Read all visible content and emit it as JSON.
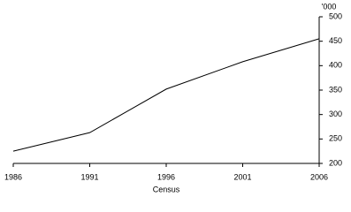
{
  "chart_data": {
    "type": "line",
    "x": [
      1986,
      1991,
      1996,
      2001,
      2006
    ],
    "series": [
      {
        "values": [
          225,
          263,
          352,
          408,
          455
        ],
        "color": "#000000"
      }
    ],
    "xlim": [
      1986,
      2006
    ],
    "xticks": [
      1986,
      1991,
      1996,
      2001,
      2006
    ],
    "ylim": [
      200,
      500
    ],
    "yticks": [
      200,
      250,
      300,
      350,
      400,
      450,
      500
    ],
    "y_unit": "'000",
    "x_label": "Census"
  }
}
